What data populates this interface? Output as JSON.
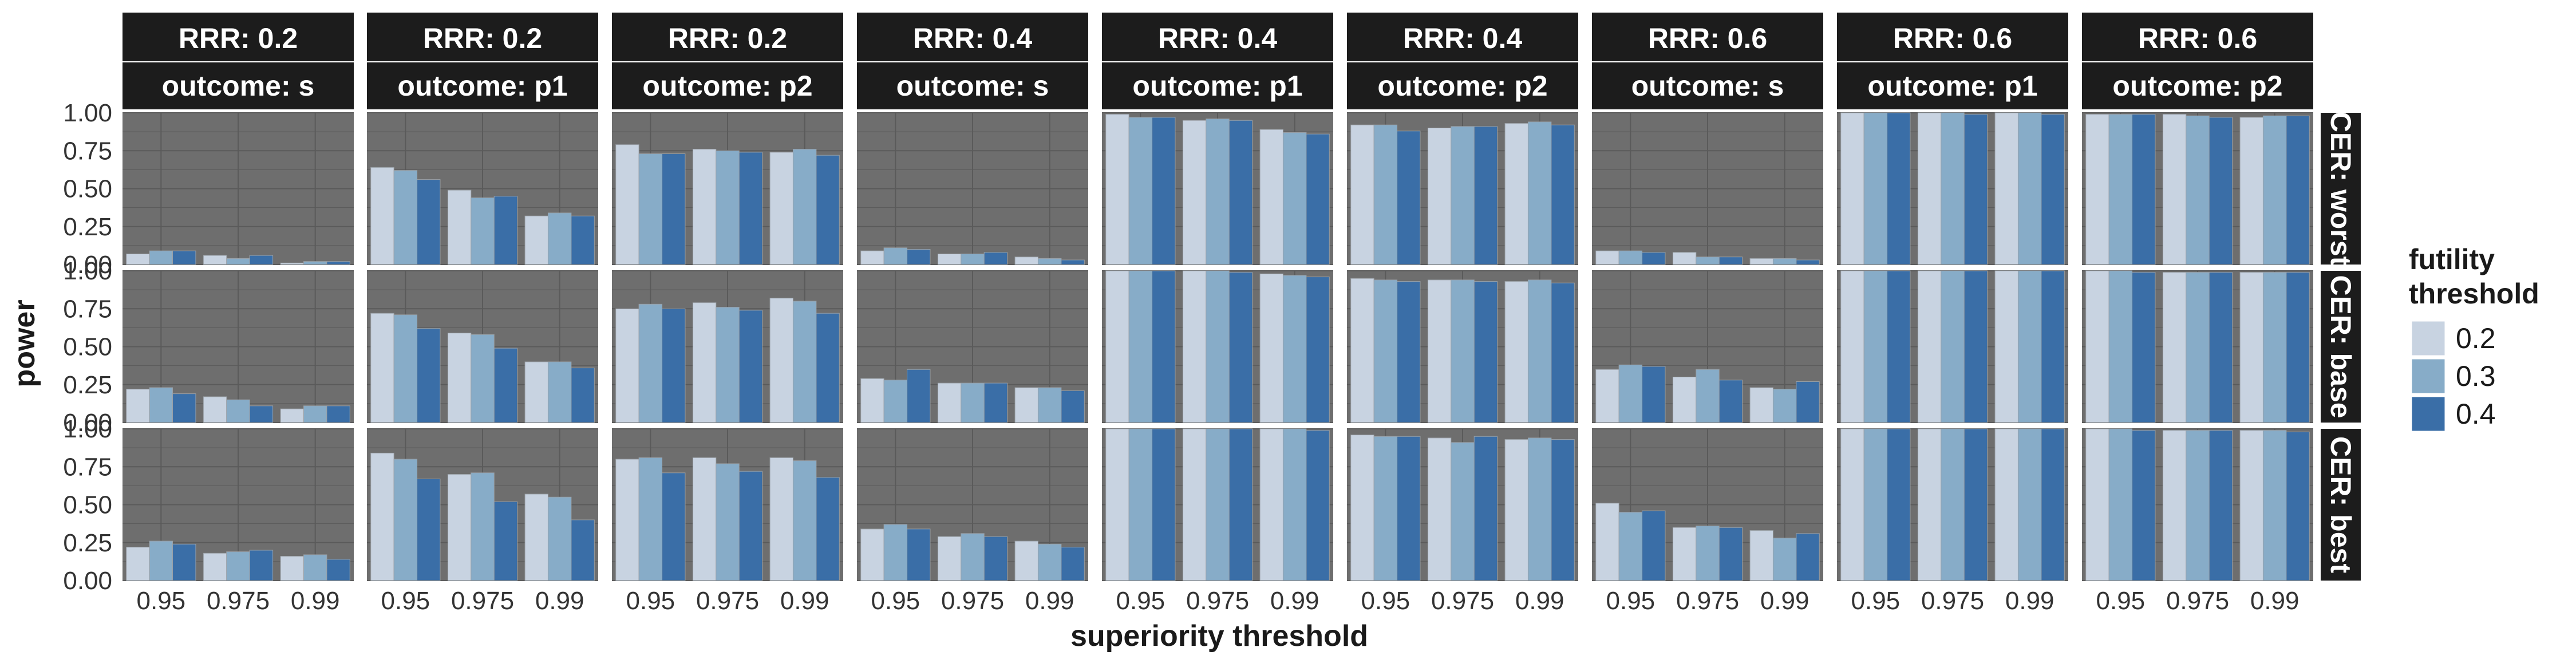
{
  "figure": {
    "y_axis_label": "power",
    "x_axis_label": "superiority threshold",
    "colors": {
      "panel_bg": "#6e6e6e",
      "grid": "#5a5a5a",
      "strip_bg": "#1c1c1c",
      "strip_text": "#ffffff",
      "bar_outline": "#9aa0a6"
    }
  },
  "legend": {
    "title_lines": [
      "futility",
      "threshold"
    ],
    "items": [
      {
        "label": "0.2",
        "color": "#c8d3e1"
      },
      {
        "label": "0.3",
        "color": "#87acc8"
      },
      {
        "label": "0.4",
        "color": "#3a6ea7"
      }
    ]
  },
  "strips": {
    "columns": [
      {
        "rrr": "RRR: 0.2",
        "outcome": "outcome: s"
      },
      {
        "rrr": "RRR: 0.2",
        "outcome": "outcome: p1"
      },
      {
        "rrr": "RRR: 0.2",
        "outcome": "outcome: p2"
      },
      {
        "rrr": "RRR: 0.4",
        "outcome": "outcome: s"
      },
      {
        "rrr": "RRR: 0.4",
        "outcome": "outcome: p1"
      },
      {
        "rrr": "RRR: 0.4",
        "outcome": "outcome: p2"
      },
      {
        "rrr": "RRR: 0.6",
        "outcome": "outcome: s"
      },
      {
        "rrr": "RRR: 0.6",
        "outcome": "outcome: p1"
      },
      {
        "rrr": "RRR: 0.6",
        "outcome": "outcome: p2"
      }
    ],
    "rows": [
      "CER: worst",
      "CER: base",
      "CER: best"
    ]
  },
  "chart_data": {
    "type": "bar",
    "categories": [
      "0.95",
      "0.975",
      "0.99"
    ],
    "series_names": [
      "0.2",
      "0.3",
      "0.4"
    ],
    "ylim": [
      0,
      1
    ],
    "yticks": [
      "0.00",
      "0.25",
      "0.50",
      "0.75",
      "1.00"
    ],
    "ytick_values": [
      0,
      0.25,
      0.5,
      0.75,
      1.0
    ],
    "grid": true,
    "legend_position": "right",
    "panels": [
      [
        [
          [
            0.07,
            0.09,
            0.09
          ],
          [
            0.06,
            0.04,
            0.06
          ],
          [
            0.01,
            0.02,
            0.02
          ]
        ],
        [
          [
            0.64,
            0.62,
            0.56
          ],
          [
            0.49,
            0.44,
            0.45
          ],
          [
            0.32,
            0.34,
            0.32
          ]
        ],
        [
          [
            0.79,
            0.73,
            0.73
          ],
          [
            0.76,
            0.75,
            0.74
          ],
          [
            0.74,
            0.76,
            0.72
          ]
        ],
        [
          [
            0.09,
            0.11,
            0.1
          ],
          [
            0.07,
            0.07,
            0.08
          ],
          [
            0.05,
            0.04,
            0.03
          ]
        ],
        [
          [
            0.99,
            0.97,
            0.97
          ],
          [
            0.95,
            0.96,
            0.95
          ],
          [
            0.89,
            0.87,
            0.86
          ]
        ],
        [
          [
            0.92,
            0.92,
            0.88
          ],
          [
            0.9,
            0.91,
            0.91
          ],
          [
            0.93,
            0.94,
            0.92
          ]
        ],
        [
          [
            0.09,
            0.09,
            0.08
          ],
          [
            0.08,
            0.05,
            0.05
          ],
          [
            0.04,
            0.04,
            0.03
          ]
        ],
        [
          [
            1.0,
            1.0,
            1.0
          ],
          [
            1.0,
            1.0,
            0.99
          ],
          [
            1.0,
            1.0,
            0.99
          ]
        ],
        [
          [
            0.99,
            0.99,
            0.99
          ],
          [
            0.99,
            0.98,
            0.97
          ],
          [
            0.97,
            0.98,
            0.98
          ]
        ]
      ],
      [
        [
          [
            0.22,
            0.23,
            0.19
          ],
          [
            0.17,
            0.15,
            0.11
          ],
          [
            0.09,
            0.11,
            0.11
          ]
        ],
        [
          [
            0.72,
            0.71,
            0.62
          ],
          [
            0.59,
            0.58,
            0.49
          ],
          [
            0.4,
            0.4,
            0.36
          ]
        ],
        [
          [
            0.75,
            0.78,
            0.75
          ],
          [
            0.79,
            0.76,
            0.74
          ],
          [
            0.82,
            0.8,
            0.72
          ]
        ],
        [
          [
            0.29,
            0.28,
            0.35
          ],
          [
            0.26,
            0.26,
            0.26
          ],
          [
            0.23,
            0.23,
            0.21
          ]
        ],
        [
          [
            1.0,
            1.0,
            1.0
          ],
          [
            1.0,
            1.0,
            0.99
          ],
          [
            0.98,
            0.97,
            0.96
          ]
        ],
        [
          [
            0.95,
            0.94,
            0.93
          ],
          [
            0.94,
            0.94,
            0.93
          ],
          [
            0.93,
            0.94,
            0.92
          ]
        ],
        [
          [
            0.35,
            0.38,
            0.37
          ],
          [
            0.3,
            0.35,
            0.28
          ],
          [
            0.23,
            0.22,
            0.27
          ]
        ],
        [
          [
            1.0,
            1.0,
            1.0
          ],
          [
            1.0,
            1.0,
            1.0
          ],
          [
            1.0,
            1.0,
            1.0
          ]
        ],
        [
          [
            1.0,
            1.0,
            0.99
          ],
          [
            0.99,
            0.99,
            0.99
          ],
          [
            0.99,
            0.99,
            0.99
          ]
        ]
      ],
      [
        [
          [
            0.22,
            0.26,
            0.24
          ],
          [
            0.18,
            0.19,
            0.2
          ],
          [
            0.16,
            0.17,
            0.14
          ]
        ],
        [
          [
            0.84,
            0.8,
            0.67
          ],
          [
            0.7,
            0.71,
            0.52
          ],
          [
            0.57,
            0.55,
            0.4
          ]
        ],
        [
          [
            0.8,
            0.81,
            0.71
          ],
          [
            0.81,
            0.77,
            0.72
          ],
          [
            0.81,
            0.79,
            0.68
          ]
        ],
        [
          [
            0.34,
            0.37,
            0.34
          ],
          [
            0.29,
            0.31,
            0.29
          ],
          [
            0.26,
            0.24,
            0.22
          ]
        ],
        [
          [
            1.0,
            1.0,
            1.0
          ],
          [
            1.0,
            1.0,
            1.0
          ],
          [
            1.0,
            1.0,
            0.99
          ]
        ],
        [
          [
            0.96,
            0.95,
            0.95
          ],
          [
            0.94,
            0.91,
            0.95
          ],
          [
            0.93,
            0.94,
            0.93
          ]
        ],
        [
          [
            0.51,
            0.45,
            0.46
          ],
          [
            0.35,
            0.36,
            0.35
          ],
          [
            0.33,
            0.28,
            0.31
          ]
        ],
        [
          [
            1.0,
            1.0,
            1.0
          ],
          [
            1.0,
            1.0,
            1.0
          ],
          [
            1.0,
            1.0,
            1.0
          ]
        ],
        [
          [
            1.0,
            1.0,
            0.99
          ],
          [
            0.99,
            0.99,
            0.99
          ],
          [
            0.99,
            0.99,
            0.98
          ]
        ]
      ]
    ]
  }
}
